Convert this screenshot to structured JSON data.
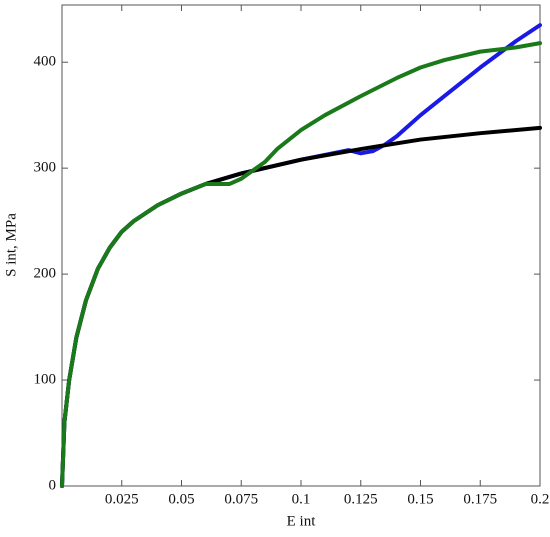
{
  "chart_data": {
    "type": "line",
    "x_label": "E int",
    "y_label": "S int, MPa",
    "xlim": [
      0,
      0.2
    ],
    "ylim": [
      0,
      454
    ],
    "xticks": [
      0.025,
      0.05,
      0.075,
      0.1,
      0.125,
      0.15,
      0.175,
      0.2
    ],
    "yticks": [
      0,
      100,
      200,
      300,
      400
    ],
    "series": [
      {
        "color": "#1a1ae6",
        "x": [
          0,
          0.001,
          0.003,
          0.006,
          0.01,
          0.015,
          0.02,
          0.025,
          0.03,
          0.04,
          0.05,
          0.06,
          0.075,
          0.1,
          0.12,
          0.125,
          0.13,
          0.135,
          0.14,
          0.15,
          0.16,
          0.175,
          0.19,
          0.2
        ],
        "values": [
          0,
          60,
          100,
          140,
          175,
          205,
          225,
          240,
          250,
          265,
          276,
          285,
          295,
          308,
          317,
          314,
          316,
          322,
          330,
          350,
          368,
          395,
          420,
          435
        ]
      },
      {
        "color": "#000000",
        "x": [
          0,
          0.001,
          0.003,
          0.006,
          0.01,
          0.015,
          0.02,
          0.025,
          0.03,
          0.04,
          0.05,
          0.06,
          0.075,
          0.1,
          0.125,
          0.15,
          0.175,
          0.2
        ],
        "values": [
          0,
          60,
          100,
          140,
          175,
          205,
          225,
          240,
          250,
          265,
          276,
          285,
          295,
          308,
          318,
          327,
          333,
          338
        ]
      },
      {
        "color": "#1a7a1a",
        "x": [
          0,
          0.001,
          0.003,
          0.006,
          0.01,
          0.015,
          0.02,
          0.025,
          0.03,
          0.04,
          0.05,
          0.06,
          0.065,
          0.07,
          0.075,
          0.08,
          0.085,
          0.09,
          0.1,
          0.11,
          0.125,
          0.14,
          0.15,
          0.16,
          0.175,
          0.19,
          0.2
        ],
        "values": [
          0,
          60,
          100,
          140,
          175,
          205,
          225,
          240,
          250,
          265,
          276,
          285,
          285,
          285,
          290,
          298,
          306,
          318,
          336,
          350,
          368,
          385,
          395,
          402,
          410,
          414,
          418
        ]
      }
    ]
  }
}
